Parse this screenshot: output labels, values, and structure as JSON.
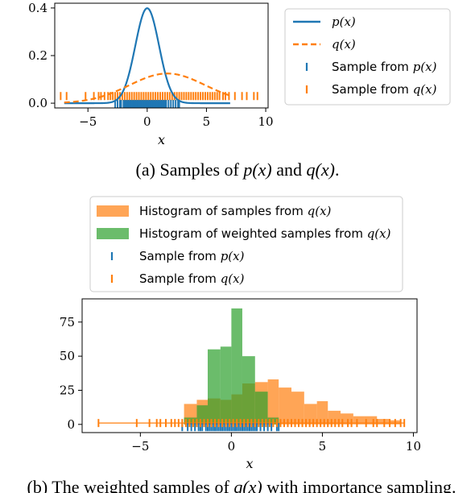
{
  "colors": {
    "blue": "#1f77b4",
    "orange": "#ff7f0e",
    "green": "#2ca02c",
    "orange_hist": "#ff7f0e"
  },
  "chart_data": [
    {
      "type": "line",
      "panel": "a",
      "xlabel": "x",
      "xlim": [
        -7.8,
        10.2
      ],
      "ylim": [
        -0.02,
        0.42
      ],
      "xticks": [
        -5,
        0,
        5,
        10
      ],
      "xtick_labels": [
        "−5",
        "0",
        "5",
        "10"
      ],
      "yticks": [
        0.0,
        0.2,
        0.4
      ],
      "ytick_labels": [
        "0.0",
        "0.2",
        "0.4"
      ],
      "legend_position": "outside-right",
      "series": [
        {
          "name": "p(x)",
          "kind": "density",
          "dist": "normal",
          "mean": 0,
          "std": 1,
          "color": "#1f77b4",
          "style": "solid"
        },
        {
          "name": "q(x)",
          "kind": "density",
          "dist": "normal",
          "mean": 1.7,
          "std": 3.2,
          "color": "#ff7f0e",
          "style": "dashed"
        }
      ],
      "rugs": [
        {
          "name": "Sample from p(x)",
          "color": "#1f77b4",
          "y": -0.003,
          "x": [
            -2.7,
            -2.5,
            -2.3,
            -2.2,
            -2.0,
            -1.9,
            -1.8,
            -1.7,
            -1.6,
            -1.5,
            -1.4,
            -1.3,
            -1.2,
            -1.1,
            -1.0,
            -0.9,
            -0.8,
            -0.7,
            -0.6,
            -0.5,
            -0.4,
            -0.3,
            -0.2,
            -0.1,
            0.0,
            0.1,
            0.2,
            0.3,
            0.4,
            0.5,
            0.6,
            0.7,
            0.8,
            0.9,
            1.0,
            1.1,
            1.2,
            1.3,
            1.4,
            1.5,
            1.6,
            1.8,
            2.0,
            2.2,
            2.4,
            2.6,
            2.7
          ]
        },
        {
          "name": "Sample from q(x)",
          "color": "#ff7f0e",
          "y": 0.03,
          "x": [
            -7.3,
            -6.8,
            -5.2,
            -4.5,
            -4.1,
            -3.9,
            -3.6,
            -3.3,
            -3.1,
            -2.9,
            -2.7,
            -2.5,
            -2.3,
            -2.1,
            -1.9,
            -1.7,
            -1.5,
            -1.3,
            -1.1,
            -0.9,
            -0.7,
            -0.5,
            -0.3,
            -0.1,
            0.1,
            0.3,
            0.5,
            0.7,
            0.9,
            1.1,
            1.3,
            1.5,
            1.7,
            1.9,
            2.1,
            2.3,
            2.5,
            2.7,
            2.9,
            3.1,
            3.3,
            3.5,
            3.7,
            3.9,
            4.1,
            4.3,
            4.5,
            4.7,
            4.9,
            5.1,
            5.3,
            5.5,
            5.7,
            5.9,
            6.1,
            6.4,
            6.6,
            6.9,
            7.4,
            8.0,
            8.4,
            9.0,
            9.3
          ]
        }
      ]
    },
    {
      "type": "bar",
      "panel": "b",
      "xlabel": "x",
      "xlim": [
        -8.2,
        10.2
      ],
      "ylim": [
        -6,
        92
      ],
      "xticks": [
        -5,
        0,
        5,
        10
      ],
      "xtick_labels": [
        "−5",
        "0",
        "5",
        "10"
      ],
      "yticks": [
        0,
        25,
        50,
        75
      ],
      "ytick_labels": [
        "0",
        "25",
        "50",
        "75"
      ],
      "legend_position": "above",
      "histograms": [
        {
          "name": "Histogram of samples from q(x)",
          "color": "#ff7f0e",
          "opacity": 0.7,
          "bins": [
            [
              -2.6,
              -1.9,
              15
            ],
            [
              -1.9,
              -1.3,
              18
            ],
            [
              -1.3,
              -0.6,
              19
            ],
            [
              -0.6,
              0.0,
              18
            ],
            [
              0.0,
              0.6,
              22
            ],
            [
              0.6,
              1.3,
              30
            ],
            [
              1.3,
              2.0,
              31
            ],
            [
              2.0,
              2.6,
              33
            ],
            [
              2.6,
              3.3,
              27
            ],
            [
              3.3,
              4.0,
              24
            ],
            [
              4.0,
              4.7,
              15
            ],
            [
              4.7,
              5.3,
              17
            ],
            [
              5.3,
              6.0,
              10
            ],
            [
              6.0,
              6.7,
              8
            ],
            [
              6.7,
              7.3,
              6
            ],
            [
              7.3,
              8.0,
              6
            ],
            [
              8.0,
              8.7,
              4
            ],
            [
              8.7,
              9.3,
              3
            ]
          ]
        },
        {
          "name": "Histogram of weighted samples from q(x)",
          "color": "#2ca02c",
          "opacity": 0.7,
          "bins": [
            [
              -2.6,
              -1.9,
              5
            ],
            [
              -1.9,
              -1.3,
              14
            ],
            [
              -1.3,
              -0.6,
              55
            ],
            [
              -0.6,
              0.0,
              57
            ],
            [
              0.0,
              0.6,
              85
            ],
            [
              0.6,
              1.3,
              50
            ],
            [
              1.3,
              2.0,
              24
            ],
            [
              2.0,
              2.6,
              5
            ]
          ]
        }
      ],
      "rugs": [
        {
          "name": "Sample from p(x)",
          "color": "#1f77b4",
          "y": -2,
          "x": [
            -2.7,
            -2.4,
            -2.2,
            -2.0,
            -1.8,
            -1.7,
            -1.6,
            -1.4,
            -1.3,
            -1.2,
            -1.1,
            -1.0,
            -0.9,
            -0.8,
            -0.7,
            -0.6,
            -0.5,
            -0.4,
            -0.3,
            -0.2,
            -0.1,
            0.0,
            0.1,
            0.2,
            0.3,
            0.4,
            0.5,
            0.6,
            0.7,
            0.8,
            0.9,
            1.0,
            1.1,
            1.2,
            1.3,
            1.4,
            1.6,
            1.8,
            2.0,
            2.2,
            2.5,
            2.6
          ]
        },
        {
          "name": "Sample from q(x)",
          "color": "#ff7f0e",
          "y": 1,
          "x": [
            -7.3,
            -5.2,
            -4.5,
            -4.1,
            -3.9,
            -3.6,
            -3.3,
            -3.1,
            -2.9,
            -2.7,
            -2.5,
            -2.3,
            -2.1,
            -1.9,
            -1.7,
            -1.5,
            -1.3,
            -1.1,
            -0.9,
            -0.7,
            -0.5,
            -0.3,
            -0.1,
            0.1,
            0.3,
            0.5,
            0.7,
            0.9,
            1.1,
            1.3,
            1.5,
            1.7,
            1.9,
            2.1,
            2.3,
            2.5,
            2.7,
            2.9,
            3.1,
            3.3,
            3.5,
            3.7,
            3.9,
            4.1,
            4.3,
            4.5,
            4.7,
            4.9,
            5.1,
            5.3,
            5.5,
            5.7,
            5.9,
            6.1,
            6.4,
            6.6,
            6.9,
            7.4,
            7.8,
            8.0,
            8.4,
            8.7,
            9.0,
            9.3,
            9.5
          ]
        }
      ]
    }
  ],
  "legend_a": {
    "items": [
      {
        "label": "p(x)",
        "kind": "line-solid",
        "color": "#1f77b4"
      },
      {
        "label": "q(x)",
        "kind": "line-dashed",
        "color": "#ff7f0e"
      },
      {
        "label_prefix": "Sample from ",
        "label_math": "p(x)",
        "kind": "tick",
        "color": "#1f77b4"
      },
      {
        "label_prefix": "Sample from ",
        "label_math": "q(x)",
        "kind": "tick",
        "color": "#ff7f0e"
      }
    ]
  },
  "legend_b": {
    "items": [
      {
        "label_prefix": "Histogram of samples from ",
        "label_math": "q(x)",
        "kind": "patch",
        "color": "#ff7f0e"
      },
      {
        "label_prefix": "Histogram of weighted samples from ",
        "label_math": "q(x)",
        "kind": "patch",
        "color": "#2ca02c"
      },
      {
        "label_prefix": "Sample from ",
        "label_math": "p(x)",
        "kind": "tick",
        "color": "#1f77b4"
      },
      {
        "label_prefix": "Sample from ",
        "label_math": "q(x)",
        "kind": "tick",
        "color": "#ff7f0e"
      }
    ]
  },
  "caption_a": {
    "prefix": "(a) Samples of ",
    "m1": "p(x)",
    "mid": " and ",
    "m2": "q(x)",
    "suffix": "."
  },
  "caption_b": {
    "prefix": "(b) The weighted samples of ",
    "m1": "q(x)",
    "suffix": " with importance sampling."
  }
}
